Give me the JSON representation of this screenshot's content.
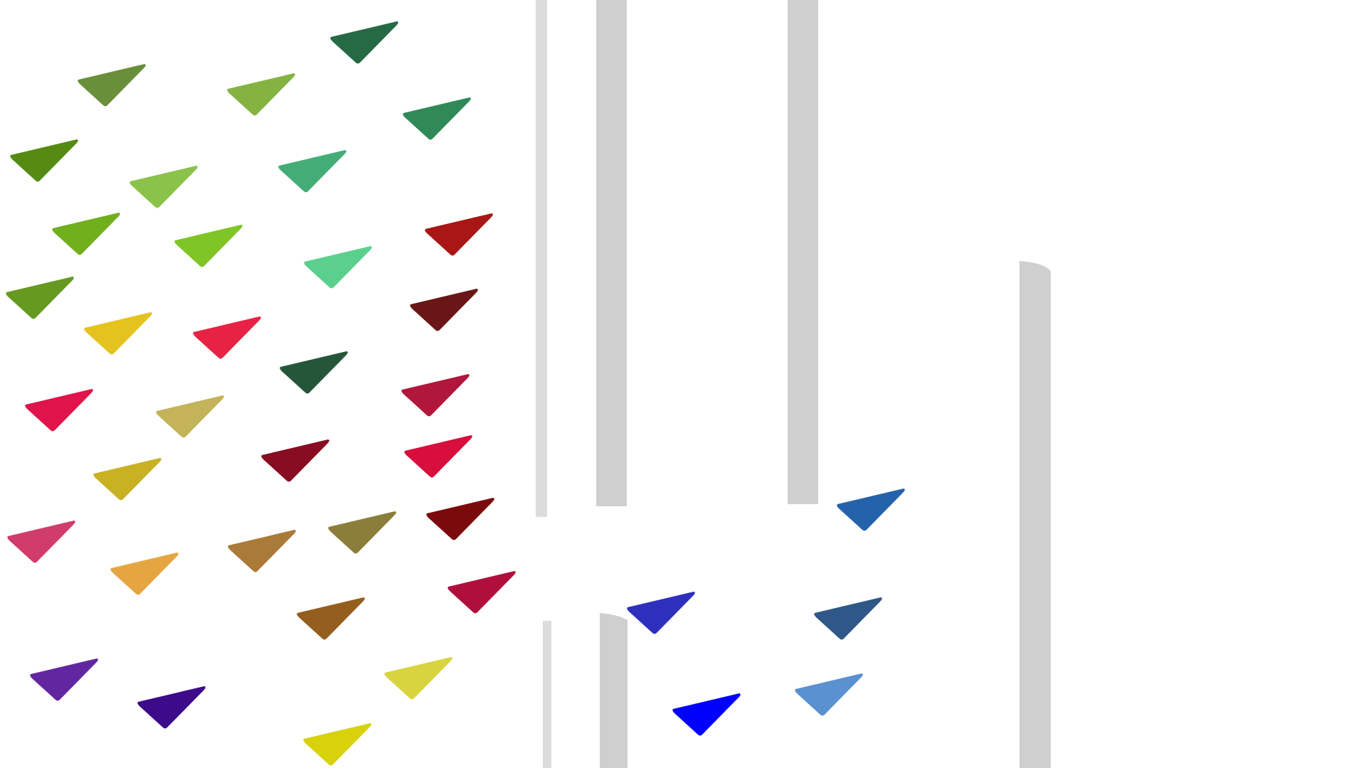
{
  "scene": {
    "background": "#ffffff",
    "pillar_color": "#cfcfcf",
    "thin_pillar_color": "#dcdcdc"
  },
  "pieces": [
    {
      "color": "#6a8f3a"
    },
    {
      "color": "#84b342"
    },
    {
      "color": "#266a45"
    },
    {
      "color": "#2f8a57"
    },
    {
      "color": "#558b12"
    },
    {
      "color": "#8bc34a"
    },
    {
      "color": "#44ad77"
    },
    {
      "color": "#70b01c"
    },
    {
      "color": "#7fc525"
    },
    {
      "color": "#a81616"
    },
    {
      "color": "#5bd08c"
    },
    {
      "color": "#66991f"
    },
    {
      "color": "#6b1616"
    },
    {
      "color": "#e5c31f"
    },
    {
      "color": "#e82244"
    },
    {
      "color": "#265639"
    },
    {
      "color": "#df144a"
    },
    {
      "color": "#c4b358"
    },
    {
      "color": "#b0173a"
    },
    {
      "color": "#880c22"
    },
    {
      "color": "#d80e3c"
    },
    {
      "color": "#c9b124"
    },
    {
      "color": "#7b0a0c"
    },
    {
      "color": "#d13d6a"
    },
    {
      "color": "#aa7a38"
    },
    {
      "color": "#8a7e3a"
    },
    {
      "color": "#e5a642"
    },
    {
      "color": "#b00f3c"
    },
    {
      "color": "#945e1e"
    },
    {
      "color": "#6326a1"
    },
    {
      "color": "#3d0a8a"
    },
    {
      "color": "#d8d43f"
    },
    {
      "color": "#d7d20a"
    },
    {
      "color": "#2463ab"
    },
    {
      "color": "#2e30bd"
    },
    {
      "color": "#2f5788"
    },
    {
      "color": "#0000ff"
    },
    {
      "color": "#5a91d0"
    }
  ]
}
